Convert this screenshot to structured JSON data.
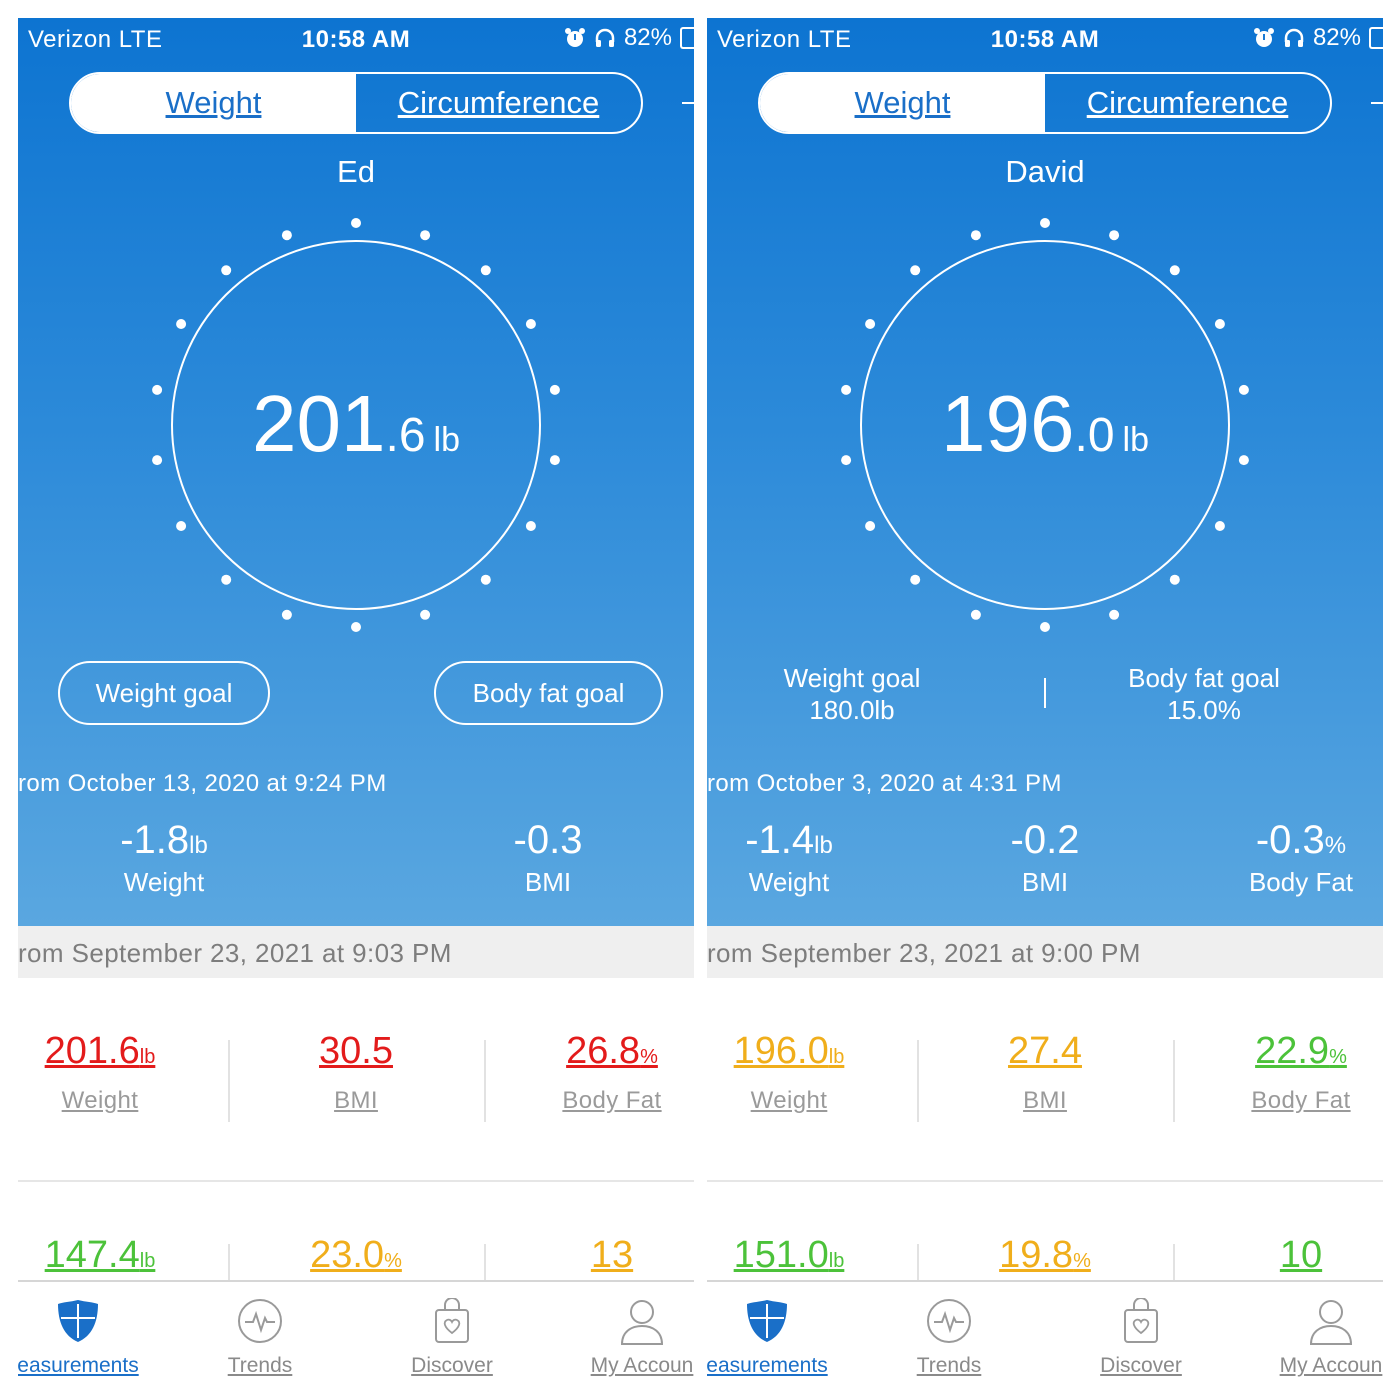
{
  "panels": [
    {
      "status": {
        "carrier": "Verizon  LTE",
        "time": "10:58 AM",
        "battery": "82%"
      },
      "tabs": {
        "weight": "Weight",
        "circumference": "Circumference"
      },
      "user_name": "Ed",
      "current": {
        "int": "201",
        "dec": ".6",
        "unit": "lb"
      },
      "goals": {
        "weight_label": "Weight goal",
        "weight_value": "",
        "bodyfat_label": "Body fat goal",
        "bodyfat_value": ""
      },
      "since_text": "rom October 13, 2020 at 9:24 PM",
      "changes": [
        {
          "value": "-1.8",
          "unit": "lb",
          "label": "Weight"
        },
        {
          "value": "-0.3",
          "unit": "",
          "label": "BMI"
        }
      ],
      "last_measure_text": "rom September 23, 2021 at 9:03 PM",
      "metrics_row1": [
        {
          "value": "201.6",
          "unit": "lb",
          "label": "Weight",
          "color": "#e31b1b"
        },
        {
          "value": "30.5",
          "unit": "",
          "label": "BMI",
          "color": "#e31b1b"
        },
        {
          "value": "26.8",
          "unit": "%",
          "label": "Body Fat",
          "color": "#e31b1b"
        }
      ],
      "metrics_row2": [
        {
          "value": "147.4",
          "unit": "lb",
          "color": "#4cc23a"
        },
        {
          "value": "23.0",
          "unit": "%",
          "color": "#f0ae1b"
        },
        {
          "value": "13",
          "unit": "",
          "color": "#f0ae1b"
        }
      ],
      "nav": [
        "easurements",
        "Trends",
        "Discover",
        "My Accoun"
      ]
    },
    {
      "status": {
        "carrier": "Verizon  LTE",
        "time": "10:58 AM",
        "battery": "82%"
      },
      "tabs": {
        "weight": "Weight",
        "circumference": "Circumference"
      },
      "user_name": "David",
      "current": {
        "int": "196",
        "dec": ".0",
        "unit": "lb"
      },
      "goals": {
        "weight_label": "Weight goal",
        "weight_value": "180.0lb",
        "bodyfat_label": "Body fat goal",
        "bodyfat_value": "15.0%"
      },
      "since_text": "rom October 3, 2020 at 4:31 PM",
      "changes": [
        {
          "value": "-1.4",
          "unit": "lb",
          "label": "Weight"
        },
        {
          "value": "-0.2",
          "unit": "",
          "label": "BMI"
        },
        {
          "value": "-0.3",
          "unit": "%",
          "label": "Body Fat"
        }
      ],
      "last_measure_text": "rom September 23, 2021 at 9:00 PM",
      "metrics_row1": [
        {
          "value": "196.0",
          "unit": "lb",
          "label": "Weight",
          "color": "#f0ae1b"
        },
        {
          "value": "27.4",
          "unit": "",
          "label": "BMI",
          "color": "#f0ae1b"
        },
        {
          "value": "22.9",
          "unit": "%",
          "label": "Body Fat",
          "color": "#4cc23a"
        }
      ],
      "metrics_row2": [
        {
          "value": "151.0",
          "unit": "lb",
          "color": "#4cc23a"
        },
        {
          "value": "19.8",
          "unit": "%",
          "color": "#f0ae1b"
        },
        {
          "value": "10",
          "unit": "",
          "color": "#4cc23a"
        }
      ],
      "nav": [
        "easurements",
        "Trends",
        "Discover",
        "My Accoun"
      ]
    }
  ],
  "accent": "#1a6fc8",
  "icons": [
    "alarm-icon",
    "headphones-icon",
    "battery-icon",
    "shield-icon",
    "heartbeat-icon",
    "discover-bag-icon",
    "person-icon"
  ]
}
